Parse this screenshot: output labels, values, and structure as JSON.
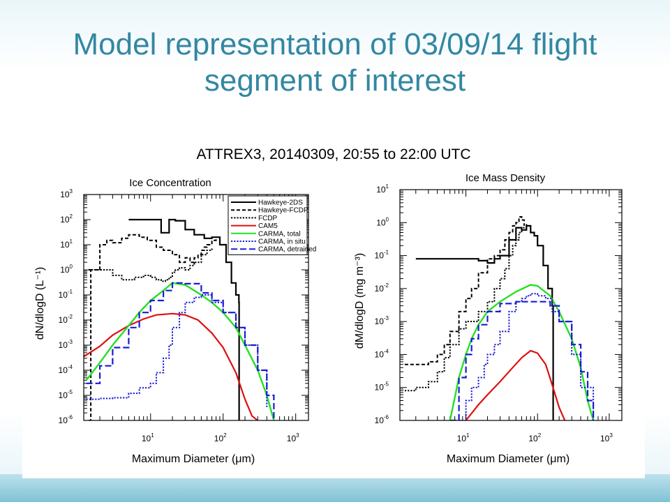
{
  "slide": {
    "title_line1": "Model representation of 03/09/14 flight",
    "title_line2": "segment of interest"
  },
  "figure": {
    "main_title": "ATTREX3, 20140309, 20:55 to 22:00 UTC"
  },
  "colors": {
    "title": "#3387a2",
    "hawkeye_2ds": "#000000",
    "hawkeye_fcdp": "#000000",
    "fcdp": "#000000",
    "cam5": "#e01010",
    "carma_total": "#22e022",
    "carma_insitu": "#1a1ad6",
    "carma_detrained": "#1a1ad6"
  },
  "chart_data": [
    {
      "type": "line",
      "title": "Ice Concentration",
      "xlabel": "Maximum Diameter (μm)",
      "ylabel": "dN/dlogD (L⁻¹)",
      "xscale": "log",
      "yscale": "log",
      "xlim": [
        1.2,
        1500
      ],
      "ylim": [
        1e-06,
        1000
      ],
      "xticks": [
        "10¹",
        "10²",
        "10³"
      ],
      "yticks": [
        "10⁶",
        "10⁵",
        "10⁴",
        "10³",
        "10²",
        "10¹",
        "10⁰",
        "10¹",
        "10²",
        "10³"
      ],
      "legend_position": "top-right",
      "series": [
        {
          "name": "Hawkeye-2DS",
          "style": "solid",
          "x": [
            5,
            13,
            14,
            18,
            22,
            30,
            40,
            55,
            70,
            90,
            110,
            130,
            150,
            165,
            166
          ],
          "y": [
            100,
            100,
            30,
            100,
            90,
            40,
            25,
            18,
            20,
            10,
            2,
            0.3,
            0.1,
            0.05,
            1e-06
          ]
        },
        {
          "name": "Hawkeye-FCDP",
          "style": "dash",
          "x": [
            1.4,
            1.5,
            2.0,
            2.5,
            3,
            4,
            5,
            7,
            9,
            12,
            15,
            20,
            25,
            30,
            35,
            40,
            45,
            50,
            55,
            60,
            70,
            80
          ],
          "y": [
            1e-06,
            1,
            10,
            15,
            12,
            18,
            25,
            20,
            15,
            8,
            6,
            4,
            2,
            3,
            2,
            3,
            4,
            6,
            8,
            10,
            15,
            20
          ]
        },
        {
          "name": "FCDP",
          "style": "dot",
          "x": [
            1.4,
            2,
            3,
            4,
            5,
            6,
            8,
            10,
            12,
            14,
            16,
            18,
            20,
            22,
            25,
            30,
            35,
            40,
            50,
            60,
            70
          ],
          "y": [
            1,
            1,
            0.6,
            0.4,
            0.4,
            0.5,
            0.6,
            0.5,
            0.4,
            0.35,
            0.4,
            0.5,
            0.8,
            1.0,
            1.2,
            1.0,
            1.5,
            2,
            4,
            6,
            8
          ]
        },
        {
          "name": "CAM5",
          "style": "solid",
          "x": [
            1.2,
            2,
            3,
            5,
            8,
            12,
            20,
            30,
            45,
            70,
            100,
            150,
            200,
            250,
            300
          ],
          "y": [
            0.00035,
            0.0009,
            0.0025,
            0.006,
            0.011,
            0.016,
            0.018,
            0.016,
            0.01,
            0.003,
            0.0008,
            8e-05,
            7e-06,
            1.5e-06,
            1e-06
          ]
        },
        {
          "name": "CARMA, total",
          "style": "solid",
          "x": [
            1.3,
            2,
            3,
            5,
            7,
            10,
            15,
            20,
            30,
            50,
            70,
            100,
            150,
            200,
            300,
            400,
            500
          ],
          "y": [
            4e-05,
            0.0002,
            0.001,
            0.006,
            0.02,
            0.06,
            0.15,
            0.3,
            0.25,
            0.1,
            0.05,
            0.02,
            0.005,
            0.001,
            0.0001,
            1e-05,
            1e-06
          ]
        },
        {
          "name": "CARMA, in situ",
          "style": "dot",
          "x": [
            1.3,
            2,
            3,
            5,
            7,
            10,
            12,
            15,
            18,
            20,
            25,
            30,
            40,
            50,
            70,
            100,
            150,
            200,
            300,
            400
          ],
          "y": [
            7e-06,
            7.5e-06,
            8e-06,
            1.2e-05,
            2e-05,
            3e-05,
            8e-05,
            0.0003,
            0.001,
            0.005,
            0.02,
            0.05,
            0.08,
            0.1,
            0.05,
            0.02,
            0.005,
            0.001,
            0.0001,
            3e-06
          ]
        },
        {
          "name": "CARMA, detrained",
          "style": "longdash",
          "x": [
            1.3,
            2,
            3,
            5,
            7,
            10,
            15,
            20,
            30,
            50,
            70,
            100,
            150,
            200,
            300,
            400,
            500
          ],
          "y": [
            3e-05,
            0.00015,
            0.0008,
            0.005,
            0.02,
            0.06,
            0.15,
            0.3,
            0.28,
            0.12,
            0.06,
            0.02,
            0.005,
            0.001,
            0.0001,
            1e-05,
            1e-06
          ]
        }
      ]
    },
    {
      "type": "line",
      "title": "Ice Mass Density",
      "xlabel": "Maximum Diameter (μm)",
      "ylabel": "dM/dlogD (mg m⁻³)",
      "xscale": "log",
      "yscale": "log",
      "xlim": [
        1.2,
        1500
      ],
      "ylim": [
        1e-06,
        10
      ],
      "xticks": [
        "10¹",
        "10²",
        "10³"
      ],
      "yticks": [
        "10⁶",
        "10⁵",
        "10⁴",
        "10³",
        "10²",
        "10¹",
        "10⁰",
        "10¹"
      ],
      "series": [
        {
          "name": "Hawkeye-2DS",
          "style": "solid",
          "x": [
            2,
            5,
            8,
            12,
            15,
            20,
            25,
            30,
            40,
            50,
            60,
            70,
            80,
            90,
            100,
            120,
            140,
            160,
            165
          ],
          "y": [
            0.08,
            0.08,
            0.08,
            0.08,
            0.07,
            0.06,
            0.08,
            0.1,
            0.3,
            0.7,
            0.6,
            0.8,
            0.5,
            0.4,
            0.2,
            0.05,
            0.01,
            0.003,
            1e-06
          ]
        },
        {
          "name": "Hawkeye-FCDP",
          "style": "dash",
          "x": [
            1.4,
            2,
            3,
            4,
            5,
            6,
            8,
            10,
            12,
            15,
            20,
            25,
            30,
            35,
            40,
            45,
            50,
            55,
            60,
            65
          ],
          "y": [
            5e-05,
            5e-05,
            6e-05,
            0.0001,
            0.0002,
            0.0005,
            0.002,
            0.005,
            0.01,
            0.03,
            0.08,
            0.1,
            0.15,
            0.3,
            0.5,
            0.8,
            1.0,
            1.5,
            1.2,
            0.8
          ]
        },
        {
          "name": "FCDP",
          "style": "dot",
          "x": [
            1.4,
            2,
            3,
            4,
            5,
            6,
            8,
            10,
            12,
            15,
            20,
            25,
            30,
            35,
            40,
            45,
            50,
            55,
            60,
            70
          ],
          "y": [
            8e-06,
            1e-05,
            1.5e-05,
            3e-05,
            8e-05,
            0.0002,
            0.0006,
            0.001,
            0.001,
            0.002,
            0.004,
            0.01,
            0.02,
            0.04,
            0.1,
            0.2,
            0.3,
            0.5,
            0.7,
            0.9
          ]
        },
        {
          "name": "CAM5",
          "style": "solid",
          "x": [
            10,
            15,
            20,
            30,
            45,
            60,
            80,
            100,
            130,
            160,
            200,
            240
          ],
          "y": [
            1e-06,
            3e-06,
            6e-06,
            1.5e-05,
            4e-05,
            8e-05,
            0.00013,
            0.00011,
            5e-05,
            1.2e-05,
            2.5e-06,
            1e-06
          ]
        },
        {
          "name": "CARMA, total",
          "style": "solid",
          "x": [
            6,
            8,
            10,
            12,
            15,
            20,
            30,
            50,
            80,
            100,
            150,
            200,
            300,
            400,
            500,
            600
          ],
          "y": [
            1e-06,
            2e-05,
            0.0001,
            0.0003,
            0.0008,
            0.002,
            0.004,
            0.008,
            0.013,
            0.012,
            0.006,
            0.002,
            0.0003,
            4e-05,
            4e-06,
            1e-06
          ]
        },
        {
          "name": "CARMA, in situ",
          "style": "dot",
          "x": [
            8,
            10,
            12,
            15,
            18,
            20,
            25,
            30,
            40,
            50,
            60,
            70,
            80,
            100,
            130,
            160,
            200,
            300,
            400,
            600
          ],
          "y": [
            1e-06,
            4e-06,
            1e-05,
            2e-05,
            5e-05,
            0.0001,
            0.0002,
            0.0005,
            0.002,
            0.004,
            0.005,
            0.006,
            0.007,
            0.006,
            0.005,
            0.002,
            0.001,
            0.0001,
            1e-05,
            1e-06
          ]
        },
        {
          "name": "CARMA, detrained",
          "style": "longdash",
          "x": [
            6,
            8,
            10,
            12,
            15,
            20,
            30,
            50,
            80,
            100,
            150,
            200,
            300,
            400,
            500,
            600
          ],
          "y": [
            1e-06,
            2e-05,
            0.0001,
            0.0003,
            0.0008,
            0.002,
            0.0035,
            0.004,
            0.004,
            0.004,
            0.003,
            0.001,
            0.0002,
            3e-05,
            4e-06,
            1e-06
          ]
        }
      ]
    }
  ]
}
